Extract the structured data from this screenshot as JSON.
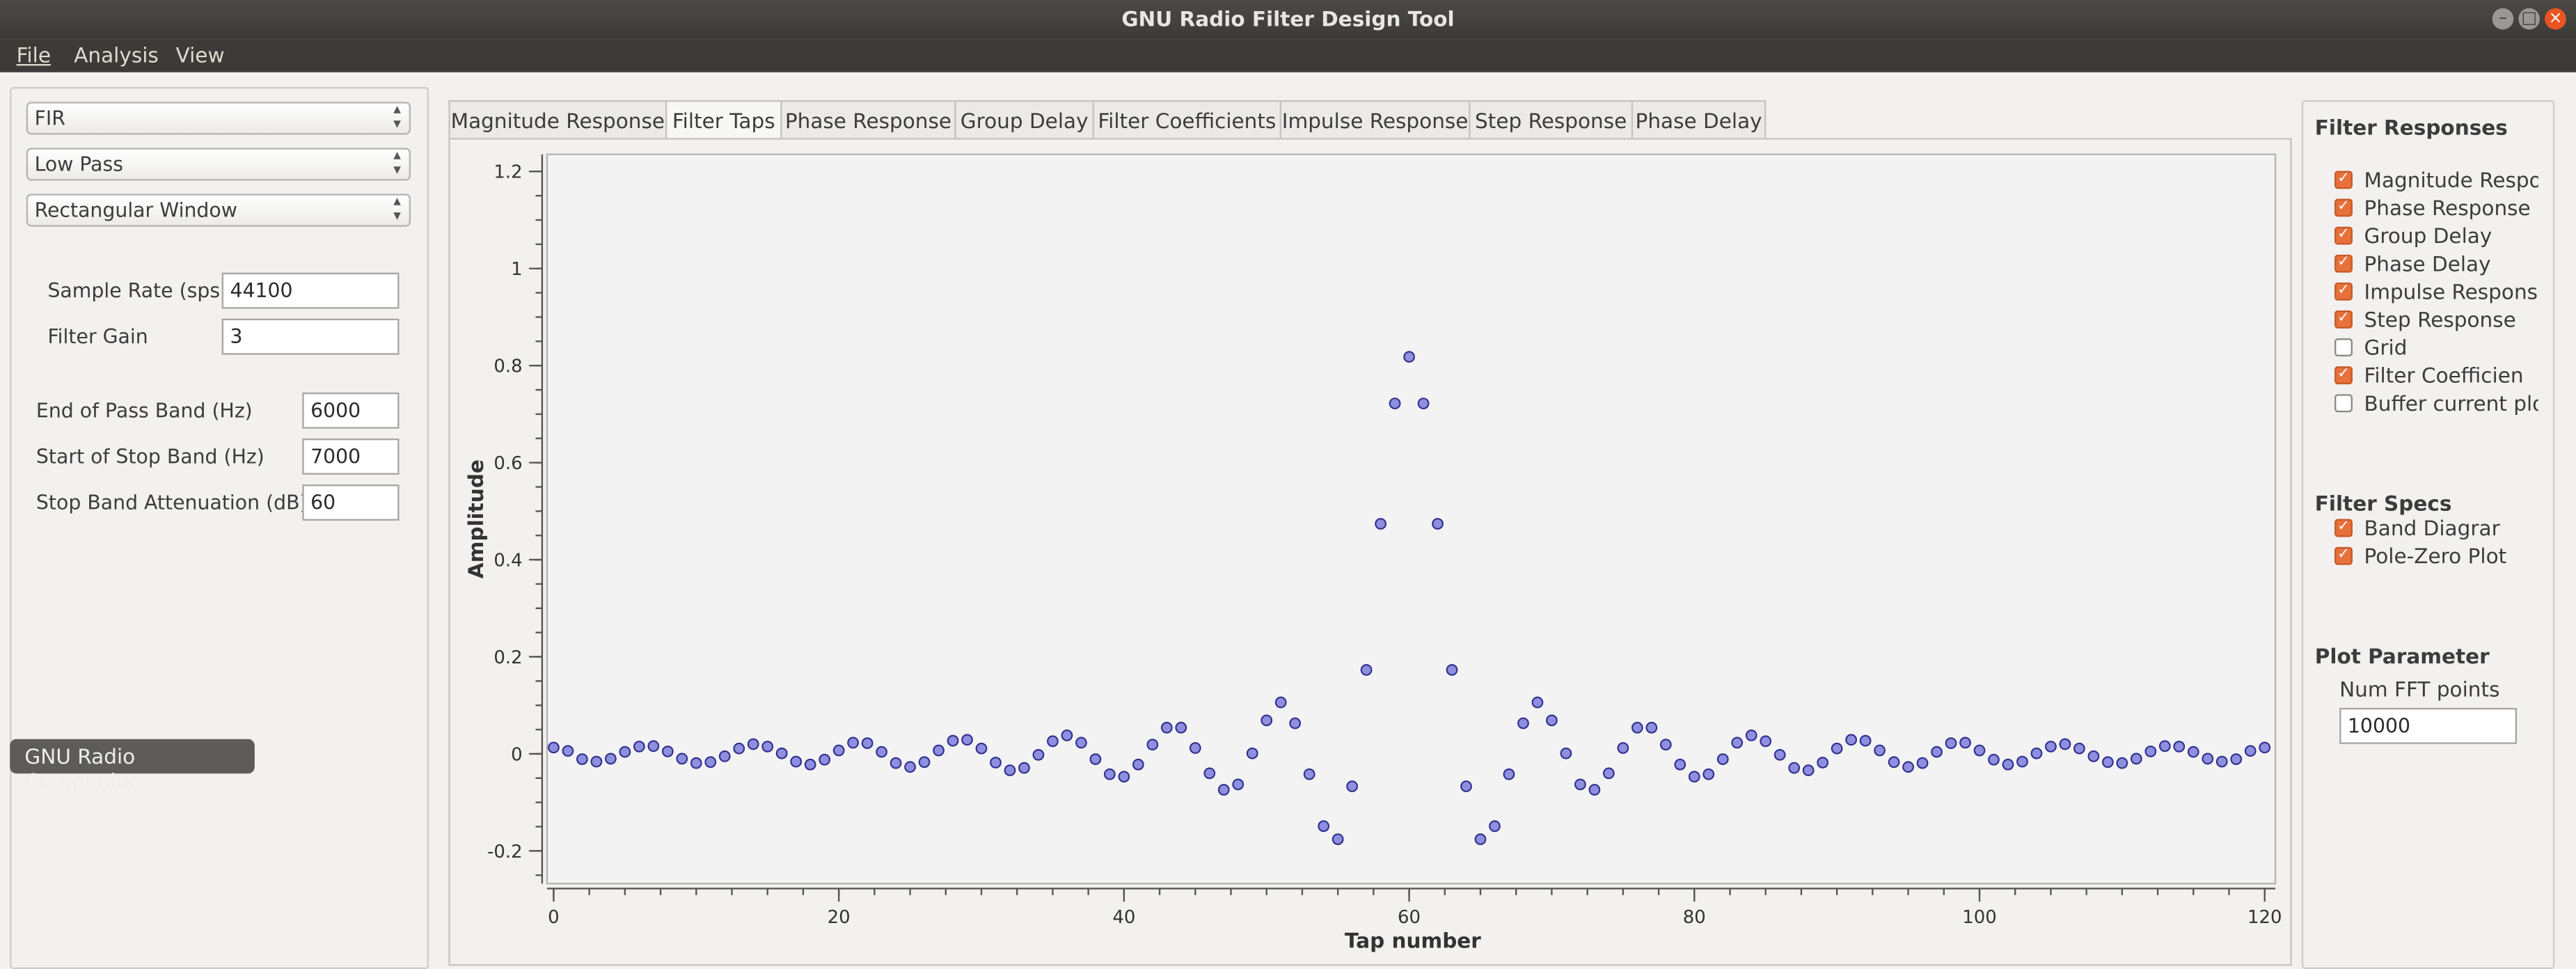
{
  "window": {
    "title": "GNU Radio Filter Design Tool"
  },
  "menu": {
    "items": [
      "File",
      "Analysis",
      "View"
    ]
  },
  "left_panel": {
    "filter_type": "FIR",
    "band_type": "Low Pass",
    "window_type": "Rectangular Window",
    "sample_rate": {
      "label": "Sample Rate (sps)",
      "value": "44100"
    },
    "filter_gain": {
      "label": "Filter Gain",
      "value": "3"
    },
    "end_pass_band": {
      "label": "End of Pass Band (Hz)",
      "value": "6000"
    },
    "start_stop_band": {
      "label": "Start of Stop Band (Hz)",
      "value": "7000"
    },
    "stop_band_atten": {
      "label": "Stop Band Attenuation (dB)",
      "value": "60"
    },
    "companion_button": "GNU Radio Companion"
  },
  "tabs": [
    {
      "label": "Magnitude Response",
      "active": false
    },
    {
      "label": "Filter Taps",
      "active": true
    },
    {
      "label": "Phase Response",
      "active": false
    },
    {
      "label": "Group Delay",
      "active": false
    },
    {
      "label": "Filter Coefficients",
      "active": false
    },
    {
      "label": "Impulse Response",
      "active": false
    },
    {
      "label": "Step Response",
      "active": false
    },
    {
      "label": "Phase Delay",
      "active": false
    }
  ],
  "right_panel": {
    "responses_title": "Filter Responses",
    "responses": [
      {
        "label": "Magnitude Respon",
        "checked": true
      },
      {
        "label": "Phase Response",
        "checked": true
      },
      {
        "label": "Group Delay",
        "checked": true
      },
      {
        "label": "Phase Delay",
        "checked": true
      },
      {
        "label": "Impulse Response",
        "checked": true
      },
      {
        "label": "Step Response",
        "checked": true
      },
      {
        "label": "Grid",
        "checked": false
      },
      {
        "label": "Filter Coefficien",
        "checked": true
      },
      {
        "label": "Buffer current plo",
        "checked": false
      }
    ],
    "specs_title": "Filter Specs",
    "specs": [
      {
        "label": "Band Diagrar",
        "checked": true
      },
      {
        "label": "Pole-Zero Plot",
        "checked": true
      }
    ],
    "plot_param_title": "Plot Parameter",
    "num_fft_label": "Num FFT points",
    "num_fft_value": "10000"
  },
  "colors": {
    "accent": "#e8703a",
    "marker_fill": "#8f8fe0",
    "marker_edge": "#2f2f8f"
  },
  "chart_data": {
    "type": "scatter",
    "xlabel": "Tap number",
    "ylabel": "Amplitude",
    "xlim": [
      0,
      120.5
    ],
    "ylim": [
      -0.25,
      1.25
    ],
    "xticks": [
      0,
      20,
      40,
      60,
      80,
      100,
      120
    ],
    "xtick_labels": [
      "0",
      "20",
      "40",
      "60",
      "80",
      "100",
      "120"
    ],
    "yticks": [
      -0.2,
      0,
      0.2,
      0.4,
      0.6,
      0.8,
      1,
      1.2
    ],
    "ytick_labels": [
      "-0.2",
      "0",
      "0.2",
      "0.4",
      "0.6",
      "0.8",
      "1",
      "1.2"
    ],
    "x": [
      0,
      1,
      2,
      3,
      4,
      5,
      6,
      7,
      8,
      9,
      10,
      11,
      12,
      13,
      14,
      15,
      16,
      17,
      18,
      19,
      20,
      21,
      22,
      23,
      24,
      25,
      26,
      27,
      28,
      29,
      30,
      31,
      32,
      33,
      34,
      35,
      36,
      37,
      38,
      39,
      40,
      41,
      42,
      43,
      44,
      45,
      46,
      47,
      48,
      49,
      50,
      51,
      52,
      53,
      54,
      55,
      56,
      57,
      58,
      59,
      60,
      61,
      62,
      63,
      64,
      65,
      66,
      67,
      68,
      69,
      70,
      71,
      72,
      73,
      74,
      75,
      76,
      77,
      78,
      79,
      80,
      81,
      82,
      83,
      84,
      85,
      86,
      87,
      88,
      89,
      90,
      91,
      92,
      93,
      94,
      95,
      96,
      97,
      98,
      99,
      100,
      101,
      102,
      103,
      104,
      105,
      106,
      107,
      108,
      109,
      110,
      111,
      112,
      113,
      114,
      115,
      116,
      117,
      118,
      119,
      120
    ],
    "y": [
      0.013,
      0.006,
      -0.011,
      -0.016,
      -0.01,
      0.004,
      0.015,
      0.016,
      0.005,
      -0.01,
      -0.019,
      -0.017,
      -0.005,
      0.011,
      0.02,
      0.015,
      0.001,
      -0.016,
      -0.022,
      -0.012,
      0.007,
      0.023,
      0.022,
      0.004,
      -0.019,
      -0.027,
      -0.017,
      0.007,
      0.027,
      0.029,
      0.011,
      -0.018,
      -0.034,
      -0.029,
      -0.002,
      0.026,
      0.038,
      0.023,
      -0.011,
      -0.042,
      -0.047,
      -0.022,
      0.019,
      0.054,
      0.054,
      0.012,
      -0.04,
      -0.074,
      -0.063,
      0.001,
      0.069,
      0.106,
      0.063,
      -0.042,
      -0.149,
      -0.176,
      -0.067,
      0.173,
      0.474,
      0.722,
      0.818,
      0.722,
      0.474,
      0.173,
      -0.067,
      -0.176,
      -0.149,
      -0.042,
      0.063,
      0.106,
      0.069,
      0.001,
      -0.063,
      -0.074,
      -0.04,
      0.012,
      0.054,
      0.054,
      0.019,
      -0.022,
      -0.047,
      -0.042,
      -0.011,
      0.023,
      0.038,
      0.026,
      -0.002,
      -0.029,
      -0.034,
      -0.018,
      0.011,
      0.029,
      0.027,
      0.007,
      -0.017,
      -0.027,
      -0.019,
      0.004,
      0.022,
      0.023,
      0.007,
      -0.012,
      -0.022,
      -0.016,
      0.001,
      0.015,
      0.02,
      0.011,
      -0.005,
      -0.017,
      -0.019,
      -0.01,
      0.005,
      0.016,
      0.015,
      0.004,
      -0.01,
      -0.016,
      -0.011,
      0.006,
      0.013
    ],
    "grid": false
  }
}
